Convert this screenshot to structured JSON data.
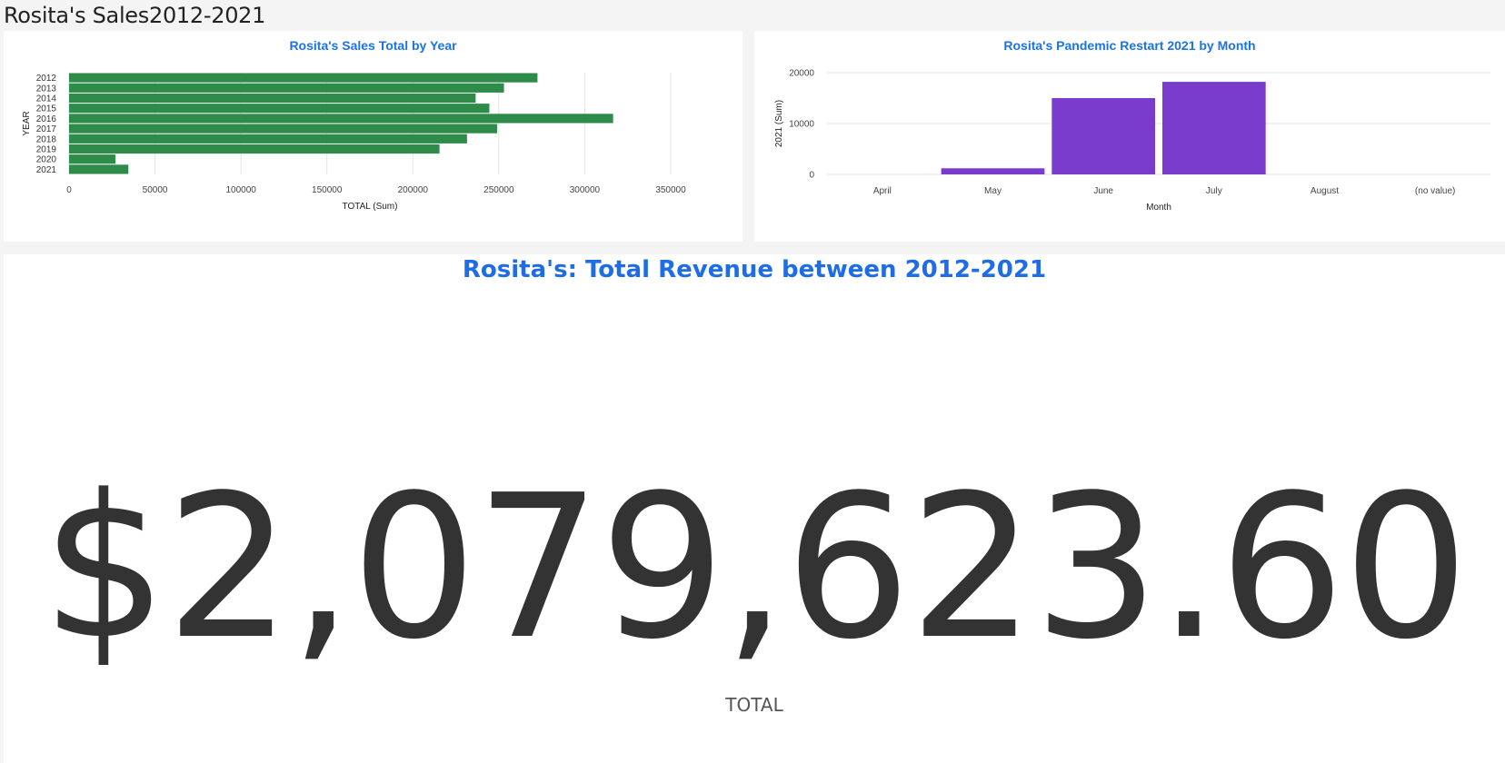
{
  "dashboard": {
    "title": "Rosita's Sales2012-2021"
  },
  "colors": {
    "title_blue": "#1a73e8",
    "year_bar": "#2e8b4a",
    "month_bar": "#7a3ccc",
    "kpi_text": "#333333"
  },
  "chart_data": [
    {
      "type": "bar",
      "orientation": "horizontal",
      "title": "Rosita's Sales Total by Year",
      "xlabel": "TOTAL (Sum)",
      "ylabel": "YEAR",
      "categories": [
        "2012",
        "2013",
        "2014",
        "2015",
        "2016",
        "2017",
        "2018",
        "2019",
        "2020",
        "2021"
      ],
      "values": [
        272500,
        253000,
        236500,
        244500,
        316500,
        249000,
        231500,
        215500,
        27000,
        34500
      ],
      "xlim": [
        0,
        350000
      ],
      "xticks": [
        0,
        50000,
        100000,
        150000,
        200000,
        250000,
        300000,
        350000
      ],
      "grid": true
    },
    {
      "type": "bar",
      "orientation": "vertical",
      "title": "Rosita's Pandemic Restart 2021 by Month",
      "xlabel": "Month",
      "ylabel": "2021 (Sum)",
      "categories": [
        "April",
        "May",
        "June",
        "July",
        "August",
        "(no value)"
      ],
      "values": [
        0,
        1200,
        15000,
        18200,
        0,
        0
      ],
      "ylim": [
        0,
        20000
      ],
      "yticks": [
        0,
        10000,
        20000
      ],
      "grid": true
    }
  ],
  "kpi": {
    "heading": "Rosita's:  Total Revenue between 2012-2021",
    "value": "$2,079,623.60",
    "label": "TOTAL"
  }
}
